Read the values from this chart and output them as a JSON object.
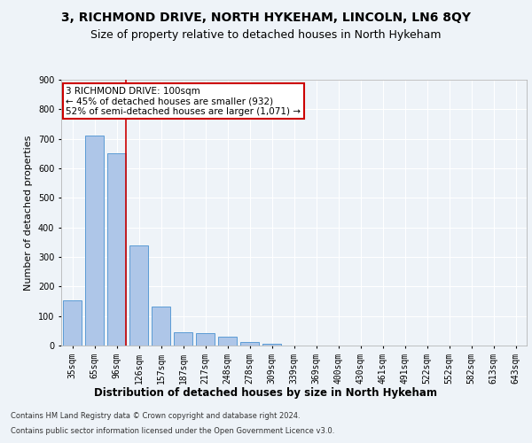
{
  "title1": "3, RICHMOND DRIVE, NORTH HYKEHAM, LINCOLN, LN6 8QY",
  "title2": "Size of property relative to detached houses in North Hykeham",
  "xlabel": "Distribution of detached houses by size in North Hykeham",
  "ylabel": "Number of detached properties",
  "categories": [
    "35sqm",
    "65sqm",
    "96sqm",
    "126sqm",
    "157sqm",
    "187sqm",
    "217sqm",
    "248sqm",
    "278sqm",
    "309sqm",
    "339sqm",
    "369sqm",
    "400sqm",
    "430sqm",
    "461sqm",
    "491sqm",
    "522sqm",
    "552sqm",
    "582sqm",
    "613sqm",
    "643sqm"
  ],
  "values": [
    152,
    711,
    651,
    339,
    131,
    44,
    41,
    30,
    12,
    5,
    0,
    0,
    0,
    0,
    0,
    0,
    0,
    0,
    0,
    0,
    0
  ],
  "bar_color": "#aec6e8",
  "bar_edge_color": "#5b9bd5",
  "vline_color": "#cc0000",
  "annotation_text": "3 RICHMOND DRIVE: 100sqm\n← 45% of detached houses are smaller (932)\n52% of semi-detached houses are larger (1,071) →",
  "annotation_box_color": "#ffffff",
  "annotation_box_edge": "#cc0000",
  "ylim": [
    0,
    900
  ],
  "yticks": [
    0,
    100,
    200,
    300,
    400,
    500,
    600,
    700,
    800,
    900
  ],
  "bg_color": "#eef3f8",
  "plot_bg_color": "#eef3f8",
  "footer1": "Contains HM Land Registry data © Crown copyright and database right 2024.",
  "footer2": "Contains public sector information licensed under the Open Government Licence v3.0.",
  "grid_color": "#ffffff",
  "title1_fontsize": 10,
  "title2_fontsize": 9,
  "tick_fontsize": 7,
  "ylabel_fontsize": 8,
  "xlabel_fontsize": 8.5,
  "footer_fontsize": 6,
  "annotation_fontsize": 7.5
}
